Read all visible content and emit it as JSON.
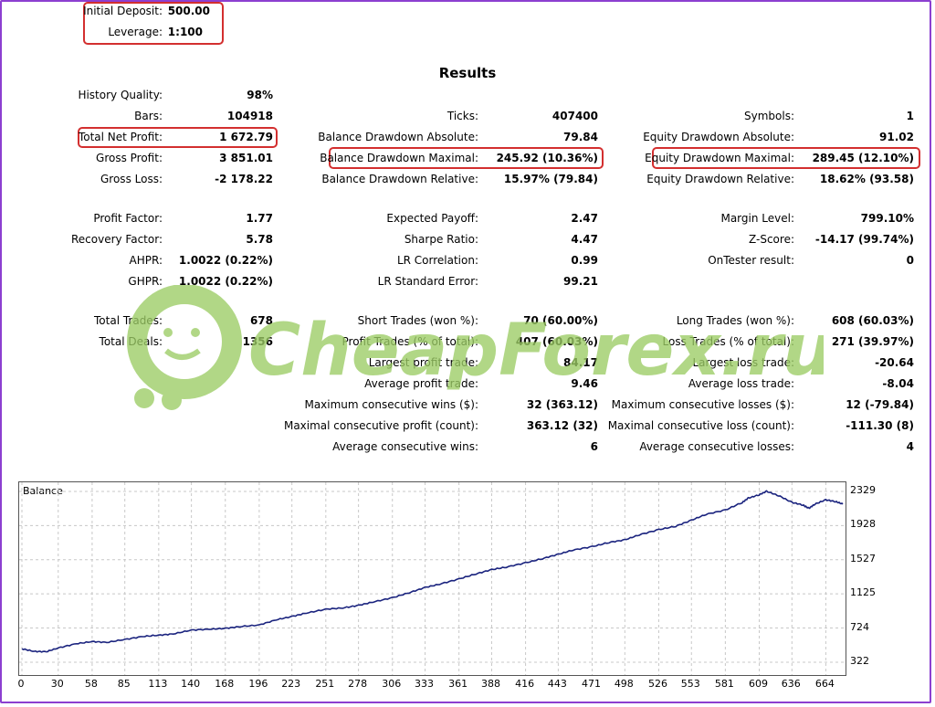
{
  "header": {
    "initial_deposit_label": "Initial Deposit:",
    "initial_deposit_value": "500.00",
    "leverage_label": "Leverage:",
    "leverage_value": "1:100"
  },
  "results_title": "Results",
  "col1": [
    {
      "label": "History Quality:",
      "value": "98%"
    },
    {
      "label": "Bars:",
      "value": "104918"
    },
    {
      "label": "Total Net Profit:",
      "value": "1 672.79"
    },
    {
      "label": "Gross Profit:",
      "value": "3 851.01"
    },
    {
      "label": "Gross Loss:",
      "value": "-2 178.22"
    },
    {
      "label": "Profit Factor:",
      "value": "1.77"
    },
    {
      "label": "Recovery Factor:",
      "value": "5.78"
    },
    {
      "label": "AHPR:",
      "value": "1.0022 (0.22%)"
    },
    {
      "label": "GHPR:",
      "value": "1.0022 (0.22%)"
    },
    {
      "label": "Total Trades:",
      "value": "678"
    },
    {
      "label": "Total Deals:",
      "value": "1356"
    }
  ],
  "col2": [
    {
      "label": "Ticks:",
      "value": "407400"
    },
    {
      "label": "Balance Drawdown Absolute:",
      "value": "79.84"
    },
    {
      "label": "Balance Drawdown Maximal:",
      "value": "245.92 (10.36%)"
    },
    {
      "label": "Balance Drawdown Relative:",
      "value": "15.97% (79.84)"
    },
    {
      "label": "Expected Payoff:",
      "value": "2.47"
    },
    {
      "label": "Sharpe Ratio:",
      "value": "4.47"
    },
    {
      "label": "LR Correlation:",
      "value": "0.99"
    },
    {
      "label": "LR Standard Error:",
      "value": "99.21"
    },
    {
      "label": "Short Trades (won %):",
      "value": "70 (60.00%)"
    },
    {
      "label": "Profit Trades (% of total):",
      "value": "407 (60.03%)"
    },
    {
      "label": "Largest profit trade:",
      "value": "84.17"
    },
    {
      "label": "Average profit trade:",
      "value": "9.46"
    },
    {
      "label": "Maximum consecutive wins ($):",
      "value": "32 (363.12)"
    },
    {
      "label": "Maximal consecutive profit (count):",
      "value": "363.12 (32)"
    },
    {
      "label": "Average consecutive wins:",
      "value": "6"
    }
  ],
  "col3": [
    {
      "label": "Symbols:",
      "value": "1"
    },
    {
      "label": "Equity Drawdown Absolute:",
      "value": "91.02"
    },
    {
      "label": "Equity Drawdown Maximal:",
      "value": "289.45 (12.10%)"
    },
    {
      "label": "Equity Drawdown Relative:",
      "value": "18.62% (93.58)"
    },
    {
      "label": "Margin Level:",
      "value": "799.10%"
    },
    {
      "label": "Z-Score:",
      "value": "-14.17 (99.74%)"
    },
    {
      "label": "OnTester result:",
      "value": "0"
    },
    {
      "label": "Long Trades (won %):",
      "value": "608 (60.03%)"
    },
    {
      "label": "Loss Trades (% of total):",
      "value": "271 (39.97%)"
    },
    {
      "label": "Largest loss trade:",
      "value": "-20.64"
    },
    {
      "label": "Average loss trade:",
      "value": "-8.04"
    },
    {
      "label": "Maximum consecutive losses ($):",
      "value": "12 (-79.84)"
    },
    {
      "label": "Maximal consecutive loss (count):",
      "value": "-111.30 (8)"
    },
    {
      "label": "Average consecutive losses:",
      "value": "4"
    }
  ],
  "watermark_text": "CheapForex.ru",
  "colors": {
    "line": "#1a237e",
    "highlight": "#d32f2f",
    "watermark": "#9ccc65",
    "frame": "#8c3fd0"
  },
  "chart_data": {
    "type": "line",
    "title": "Balance",
    "x_ticks": [
      "0",
      "30",
      "58",
      "85",
      "113",
      "140",
      "168",
      "196",
      "223",
      "251",
      "278",
      "306",
      "333",
      "361",
      "388",
      "416",
      "443",
      "471",
      "498",
      "526",
      "553",
      "581",
      "609",
      "636",
      "664"
    ],
    "y_ticks": [
      "2329",
      "1928",
      "1527",
      "1125",
      "724",
      "322"
    ],
    "xlim": [
      0,
      678
    ],
    "ylim": [
      322,
      2329
    ],
    "series": [
      {
        "x": [
          0,
          10,
          20,
          30,
          45,
          58,
          70,
          85,
          100,
          113,
          125,
          140,
          155,
          168,
          180,
          196,
          210,
          223,
          235,
          251,
          265,
          278,
          290,
          306,
          320,
          333,
          345,
          361,
          375,
          388,
          400,
          416,
          430,
          443,
          455,
          471,
          485,
          498,
          510,
          526,
          540,
          553,
          565,
          581,
          595,
          600,
          609,
          615,
          625,
          636,
          645,
          650,
          655,
          664,
          672,
          678
        ],
        "values": [
          480,
          450,
          445,
          490,
          540,
          565,
          555,
          590,
          625,
          640,
          655,
          700,
          710,
          720,
          740,
          760,
          820,
          860,
          900,
          945,
          960,
          990,
          1030,
          1080,
          1140,
          1200,
          1240,
          1300,
          1360,
          1410,
          1440,
          1490,
          1540,
          1590,
          1640,
          1680,
          1730,
          1760,
          1820,
          1880,
          1920,
          1990,
          2060,
          2110,
          2200,
          2250,
          2290,
          2330,
          2280,
          2200,
          2170,
          2130,
          2180,
          2230,
          2210,
          2180
        ]
      }
    ]
  }
}
